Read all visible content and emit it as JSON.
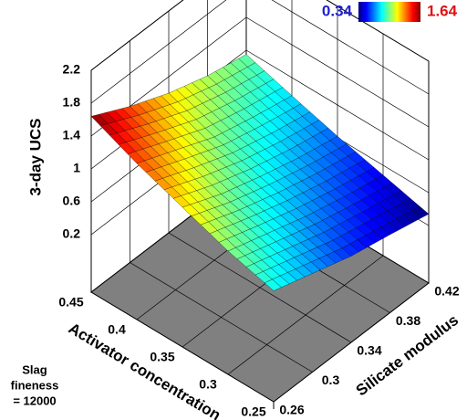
{
  "chart_data": {
    "type": "surface3d",
    "x_label": "Activator concentration",
    "y_label": "Silicate modulus",
    "z_label": "3-day UCS",
    "annotation": [
      "Slag",
      "fineness",
      "= 12000"
    ],
    "x": [
      0.25,
      0.3,
      0.35,
      0.4,
      0.45
    ],
    "y": [
      0.26,
      0.3,
      0.34,
      0.38,
      0.42
    ],
    "z": [
      [
        0.85,
        1.0,
        1.2,
        1.4,
        1.64
      ],
      [
        0.7,
        0.85,
        1.0,
        1.2,
        1.4
      ],
      [
        0.55,
        0.7,
        0.85,
        1.0,
        1.2
      ],
      [
        0.45,
        0.58,
        0.72,
        0.88,
        1.05
      ],
      [
        0.34,
        0.48,
        0.62,
        0.78,
        0.95
      ]
    ],
    "xlim": [
      0.25,
      0.45
    ],
    "ylim": [
      0.26,
      0.42
    ],
    "zlim": [
      -0.5,
      2.2
    ],
    "xticks": [
      0.25,
      0.3,
      0.35,
      0.4,
      0.45
    ],
    "yticks": [
      0.26,
      0.3,
      0.34,
      0.38,
      0.42
    ],
    "zticks": [
      0.2,
      0.6,
      1,
      1.4,
      1.8,
      2.2
    ],
    "colorbar_range": [
      0.34,
      1.64
    ],
    "colormap": "jet",
    "floor_color": "#808080",
    "grid": true
  }
}
